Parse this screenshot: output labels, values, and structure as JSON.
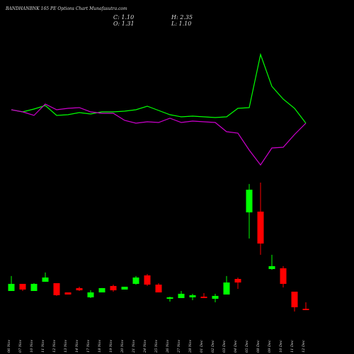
{
  "chart_data": {
    "type": "candlestick",
    "title": "BANDHANBNK 165 PE Options Chart Munafasutra.com",
    "summary": [
      "C: 1.10",
      "H: 2.35",
      "O: 1.31",
      "L: 1.10"
    ],
    "categories": [
      "06 Nov",
      "07 Nov",
      "10 Nov",
      "11 Nov",
      "12 Nov",
      "13 Nov",
      "14 Nov",
      "17 Nov",
      "18 Nov",
      "19 Nov",
      "20 Nov",
      "21 Nov",
      "24 Nov",
      "25 Nov",
      "26 Nov",
      "27 Nov",
      "28 Nov",
      "01 Dec",
      "02 Dec",
      "03 Dec",
      "04 Dec",
      "05 Dec",
      "08 Dec",
      "09 Dec",
      "10 Dec",
      "11 Dec",
      "12 Dec"
    ],
    "open": [
      4.17,
      5.31,
      4.17,
      5.65,
      5.42,
      3.94,
      4.63,
      3.15,
      3.94,
      4.97,
      4.4,
      5.31,
      6.67,
      5.19,
      2.92,
      3.03,
      3.15,
      3.26,
      2.92,
      3.6,
      6.1,
      16.78,
      16.9,
      7.69,
      7.81,
      4.06,
      1.31
    ],
    "high": [
      6.56,
      5.31,
      5.42,
      7.13,
      5.42,
      3.94,
      4.85,
      4.28,
      4.63,
      5.19,
      4.85,
      6.56,
      6.9,
      5.42,
      3.26,
      4.17,
      3.72,
      3.83,
      3.72,
      6.56,
      6.33,
      21.33,
      21.56,
      9.97,
      8.15,
      4.06,
      2.35
    ],
    "low": [
      4.17,
      4.17,
      4.17,
      5.65,
      3.38,
      3.6,
      4.17,
      3.03,
      3.94,
      4.06,
      4.4,
      5.19,
      4.97,
      3.94,
      2.47,
      3.03,
      2.69,
      3.03,
      2.35,
      3.6,
      4.51,
      12.58,
      9.97,
      7.58,
      4.74,
      0.88,
      1.1
    ],
    "close": [
      5.31,
      4.4,
      5.31,
      6.33,
      3.49,
      3.6,
      4.28,
      3.94,
      4.63,
      4.28,
      4.85,
      6.33,
      5.19,
      3.94,
      3.15,
      3.72,
      3.49,
      3.03,
      3.38,
      5.53,
      5.53,
      20.42,
      11.78,
      8.15,
      5.31,
      1.56,
      1.1
    ],
    "up_color": "#00ff00",
    "down_color": "#ff0000",
    "ylim": [
      0,
      46.3
    ],
    "y2lim": [
      0,
      300
    ],
    "lines": [
      {
        "color": "#00ff00",
        "axis": "y2",
        "values": [
          145,
          142,
          146,
          151,
          137,
          138,
          141,
          139,
          142,
          142,
          143,
          145,
          150,
          144,
          138,
          135,
          136,
          135,
          134,
          135,
          147,
          148,
          223,
          178,
          160,
          147,
          126
        ]
      },
      {
        "color": "#cc00cc",
        "axis": "y2",
        "values": [
          145,
          142,
          137,
          153,
          145,
          147,
          148,
          142,
          140,
          140,
          130,
          126,
          128,
          127,
          133,
          127,
          129,
          128,
          127,
          114,
          112,
          88,
          67,
          91,
          92,
          110,
          126
        ]
      }
    ]
  }
}
